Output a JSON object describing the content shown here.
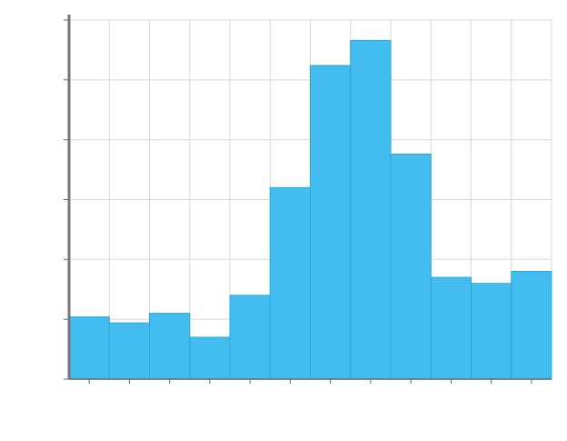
{
  "chart_data": {
    "type": "bar",
    "title": "",
    "xlabel": "",
    "ylabel": "",
    "categories": [
      "",
      "",
      "",
      "",
      "",
      "",
      "",
      "",
      "",
      "",
      "",
      ""
    ],
    "values": [
      52,
      47,
      55,
      35,
      70,
      160,
      262,
      283,
      188,
      85,
      80,
      90
    ],
    "ylim": [
      0,
      300
    ],
    "yticks": [
      0,
      50,
      100,
      150,
      200,
      250,
      300
    ],
    "ytick_labels": [
      "",
      "",
      "",
      "",
      "",
      "",
      ""
    ],
    "grid": true,
    "legend": "none",
    "colors": {
      "bar": "#43bdf0",
      "bar_edge": "#2aa7dc",
      "grid": "#d9d9d9",
      "axis": "#666666"
    }
  }
}
